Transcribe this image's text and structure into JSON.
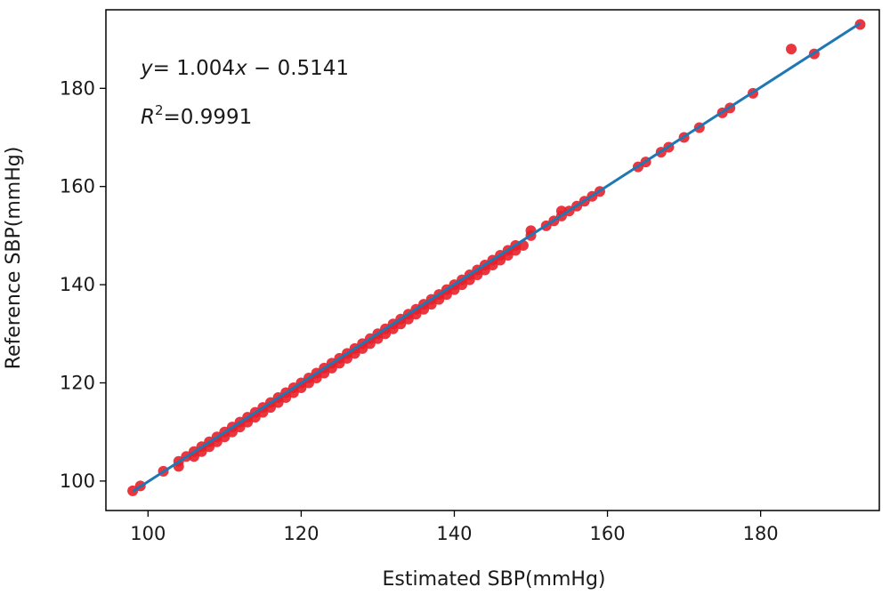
{
  "chart_data": {
    "type": "scatter",
    "xlabel": "Estimated SBP(mmHg)",
    "ylabel": "Reference SBP(mmHg)",
    "xlim": [
      94.5,
      195.5
    ],
    "ylim": [
      94,
      196
    ],
    "xticks": [
      100,
      120,
      140,
      160,
      180
    ],
    "yticks": [
      100,
      120,
      140,
      160,
      180
    ],
    "grid": false,
    "annotations": {
      "equation_lhs": "y",
      "equation_rhs": "= 1.004",
      "equation_var": "x",
      "equation_tail": " − 0.5141",
      "r2_symbol": "R",
      "r2_exponent": "2",
      "r2_value": "=0.9991"
    },
    "fit_line": {
      "slope": 1.004,
      "intercept": -0.5141,
      "x_range": [
        98,
        193
      ],
      "color": "#1f77b4"
    },
    "series": [
      {
        "color": "#e8202a",
        "points": [
          [
            98,
            98
          ],
          [
            99,
            99
          ],
          [
            102,
            102
          ],
          [
            104,
            103
          ],
          [
            104,
            104
          ],
          [
            105,
            105
          ],
          [
            106,
            105
          ],
          [
            106,
            106
          ],
          [
            107,
            106
          ],
          [
            107,
            107
          ],
          [
            108,
            107
          ],
          [
            108,
            108
          ],
          [
            109,
            108
          ],
          [
            109,
            109
          ],
          [
            110,
            109
          ],
          [
            110,
            110
          ],
          [
            111,
            110
          ],
          [
            111,
            111
          ],
          [
            112,
            111
          ],
          [
            112,
            112
          ],
          [
            113,
            112
          ],
          [
            113,
            113
          ],
          [
            114,
            113
          ],
          [
            114,
            114
          ],
          [
            115,
            114
          ],
          [
            115,
            115
          ],
          [
            116,
            115
          ],
          [
            116,
            116
          ],
          [
            117,
            116
          ],
          [
            117,
            117
          ],
          [
            118,
            117
          ],
          [
            118,
            118
          ],
          [
            119,
            118
          ],
          [
            119,
            119
          ],
          [
            120,
            119
          ],
          [
            120,
            120
          ],
          [
            121,
            120
          ],
          [
            121,
            121
          ],
          [
            122,
            121
          ],
          [
            122,
            122
          ],
          [
            123,
            122
          ],
          [
            123,
            123
          ],
          [
            124,
            123
          ],
          [
            124,
            124
          ],
          [
            125,
            124
          ],
          [
            125,
            125
          ],
          [
            126,
            125
          ],
          [
            126,
            126
          ],
          [
            127,
            126
          ],
          [
            127,
            127
          ],
          [
            128,
            127
          ],
          [
            128,
            128
          ],
          [
            129,
            128
          ],
          [
            129,
            129
          ],
          [
            130,
            129
          ],
          [
            130,
            130
          ],
          [
            131,
            130
          ],
          [
            131,
            131
          ],
          [
            132,
            131
          ],
          [
            132,
            132
          ],
          [
            133,
            132
          ],
          [
            133,
            133
          ],
          [
            134,
            133
          ],
          [
            134,
            134
          ],
          [
            135,
            134
          ],
          [
            135,
            135
          ],
          [
            136,
            135
          ],
          [
            136,
            136
          ],
          [
            137,
            136
          ],
          [
            137,
            137
          ],
          [
            138,
            137
          ],
          [
            138,
            138
          ],
          [
            139,
            138
          ],
          [
            139,
            139
          ],
          [
            140,
            139
          ],
          [
            140,
            140
          ],
          [
            141,
            140
          ],
          [
            141,
            141
          ],
          [
            142,
            141
          ],
          [
            142,
            142
          ],
          [
            143,
            142
          ],
          [
            143,
            143
          ],
          [
            144,
            143
          ],
          [
            144,
            144
          ],
          [
            145,
            144
          ],
          [
            145,
            145
          ],
          [
            146,
            145
          ],
          [
            146,
            146
          ],
          [
            147,
            146
          ],
          [
            147,
            147
          ],
          [
            148,
            147
          ],
          [
            148,
            148
          ],
          [
            149,
            148
          ],
          [
            150,
            150
          ],
          [
            150,
            151
          ],
          [
            152,
            152
          ],
          [
            153,
            153
          ],
          [
            154,
            154
          ],
          [
            154,
            155
          ],
          [
            155,
            155
          ],
          [
            156,
            156
          ],
          [
            157,
            157
          ],
          [
            158,
            158
          ],
          [
            159,
            159
          ],
          [
            164,
            164
          ],
          [
            165,
            165
          ],
          [
            167,
            167
          ],
          [
            168,
            168
          ],
          [
            170,
            170
          ],
          [
            172,
            172
          ],
          [
            175,
            175
          ],
          [
            176,
            176
          ],
          [
            179,
            179
          ],
          [
            184,
            188
          ],
          [
            187,
            187
          ],
          [
            193,
            193
          ]
        ]
      }
    ]
  }
}
